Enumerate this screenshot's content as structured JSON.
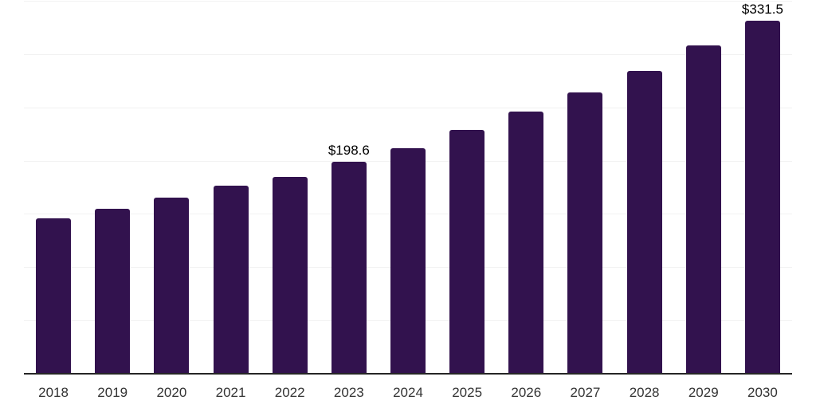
{
  "chart_data": {
    "type": "bar",
    "title": "",
    "xlabel": "",
    "ylabel": "",
    "categories": [
      "2018",
      "2019",
      "2020",
      "2021",
      "2022",
      "2023",
      "2024",
      "2025",
      "2026",
      "2027",
      "2028",
      "2029",
      "2030"
    ],
    "values": [
      145.6,
      154.5,
      165.0,
      176.2,
      184.4,
      198.6,
      211.3,
      228.5,
      246.4,
      264.3,
      284.5,
      308.3,
      331.5
    ],
    "data_labels": [
      "",
      "",
      "",
      "",
      "",
      "$198.6",
      "",
      "",
      "",
      "",
      "",
      "",
      "$331.5"
    ],
    "ylim": [
      0,
      350
    ],
    "gridline_interval": 50,
    "grid": true,
    "legend": "none",
    "colors": {
      "bar": "#32124E",
      "axis": "#262626",
      "grid": "#f2f2f2",
      "tick_label": "#333333",
      "value_label": "#000000",
      "background": "#ffffff"
    }
  }
}
